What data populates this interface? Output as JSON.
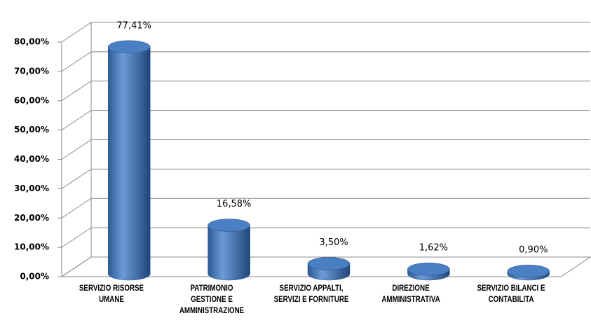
{
  "chart_data": {
    "type": "bar3d",
    "categories": [
      "SERVIZIO RISORSE UMANE",
      "PATRIMONIO GESTIONE E AMMINISTRAZIONE",
      "SERVIZIO APPALTI, SERVIZI E FORNITURE",
      "DIREZIONE AMMINISTRATIVA",
      "SERVIZIO BILANCI E CONTABILITA"
    ],
    "values": [
      77.41,
      16.58,
      3.5,
      1.62,
      0.9
    ],
    "value_labels": [
      "77,41%",
      "16,58%",
      "3,50%",
      "1,62%",
      "0,90%"
    ],
    "color": "#4f81bd",
    "ylim": [
      0,
      80
    ],
    "yticks": [
      {
        "value": 0,
        "label": "0,00%"
      },
      {
        "value": 10,
        "label": "10,00%"
      },
      {
        "value": 20,
        "label": "20,00%"
      },
      {
        "value": 30,
        "label": "30,00%"
      },
      {
        "value": 40,
        "label": "40,00%"
      },
      {
        "value": 50,
        "label": "50,00%"
      },
      {
        "value": 60,
        "label": "60,00%"
      },
      {
        "value": 70,
        "label": "70,00%"
      },
      {
        "value": 80,
        "label": "80,00%"
      }
    ],
    "grid": true
  }
}
